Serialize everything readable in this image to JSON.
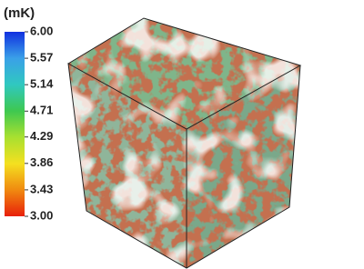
{
  "colorbar": {
    "title": "(mK)",
    "lim": [
      3,
      6
    ],
    "ticks": [
      {
        "value": 6,
        "label": "6.00"
      },
      {
        "value": 5.57,
        "label": "5.57"
      },
      {
        "value": 5.14,
        "label": "5.14"
      },
      {
        "value": 4.71,
        "label": "4.71"
      },
      {
        "value": 4.29,
        "label": "4.29"
      },
      {
        "value": 3.86,
        "label": "3.86"
      },
      {
        "value": 3.43,
        "label": "3.43"
      },
      {
        "value": 3,
        "label": "3.00"
      }
    ],
    "colors": [
      "#e8200a",
      "#f08a10",
      "#f4e020",
      "#a8e030",
      "#3ec850",
      "#30c8c0",
      "#3aa0e8",
      "#1030e0"
    ]
  }
}
